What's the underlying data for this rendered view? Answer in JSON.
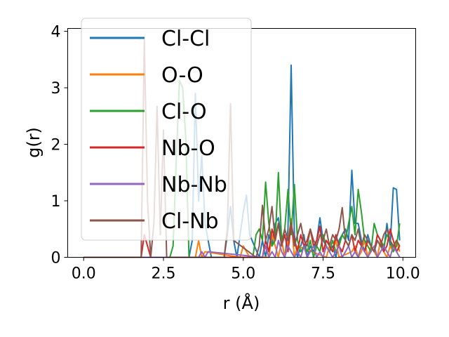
{
  "chart_data": {
    "type": "line",
    "xlabel": "r (Å)",
    "ylabel": "g(r)",
    "xlim": [
      -0.5,
      10.4
    ],
    "ylim": [
      0,
      4.05
    ],
    "xticks": [
      "0.0",
      "2.5",
      "5.0",
      "7.5",
      "10.0"
    ],
    "yticks": [
      "0",
      "1",
      "2",
      "3",
      "4"
    ],
    "grid": false,
    "legend_position": "top-left",
    "series": [
      {
        "name": "Cl-Cl",
        "color": "#1f77b4",
        "x": [
          0,
          3.3,
          3.4,
          3.5,
          3.6,
          3.7,
          3.8,
          3.9,
          4.0,
          4.4,
          4.5,
          4.6,
          4.7,
          4.8,
          4.9,
          5.0,
          5.1,
          5.2,
          5.5,
          5.6,
          5.7,
          5.8,
          5.9,
          6.0,
          6.1,
          6.2,
          6.3,
          6.4,
          6.5,
          6.6,
          6.7,
          6.8,
          6.9,
          7.0,
          7.1,
          7.2,
          7.3,
          7.4,
          7.5,
          7.6,
          7.7,
          7.8,
          7.9,
          8.0,
          8.1,
          8.2,
          8.3,
          8.4,
          8.5,
          8.6,
          8.7,
          8.8,
          8.9,
          9.0,
          9.1,
          9.2,
          9.3,
          9.4,
          9.5,
          9.6,
          9.7,
          9.8,
          9.9
        ],
        "y": [
          0,
          0,
          0.3,
          2.9,
          1.0,
          1.8,
          0.6,
          0.3,
          0,
          0,
          0.4,
          0.9,
          0.3,
          0,
          0.4,
          0.8,
          1.1,
          0.4,
          0,
          0.3,
          0,
          0.4,
          0.2,
          0.6,
          0.7,
          0.3,
          0,
          0.5,
          3.4,
          0.4,
          0,
          0.2,
          0.4,
          0,
          0.2,
          0.1,
          0.3,
          0.7,
          0.3,
          0.2,
          0.1,
          0.2,
          0,
          0.3,
          0.4,
          0.5,
          0.3,
          1.54,
          0.6,
          0.6,
          0.3,
          0.1,
          0.4,
          0.2,
          0.1,
          0.3,
          0.2,
          0.1,
          0.6,
          0.2,
          1.23,
          1.2,
          0.3
        ]
      },
      {
        "name": "O-O",
        "color": "#ff7f0e",
        "x": [
          0,
          3.5,
          3.6,
          3.7,
          3.8,
          4.9,
          5.0,
          5.1,
          5.2,
          5.8,
          5.9,
          6.0,
          6.1,
          6.2,
          6.3,
          6.4,
          6.5,
          6.6,
          6.7,
          7.6,
          7.7,
          7.8,
          7.9,
          8.0,
          8.4,
          8.5,
          8.6,
          8.7,
          8.8,
          8.9,
          9.0,
          9.1,
          9.2,
          9.3,
          9.4,
          9.5,
          9.6,
          9.7,
          9.8,
          9.9
        ],
        "y": [
          0,
          0,
          0.3,
          0,
          0.1,
          0,
          0.2,
          0.1,
          0,
          0,
          0.4,
          0.2,
          0,
          0.3,
          0,
          0.3,
          0.68,
          0,
          0.2,
          0,
          0.2,
          0.1,
          0.3,
          0,
          0.1,
          0.2,
          0,
          0.1,
          0.3,
          0,
          0.2,
          0.1,
          0,
          0.3,
          0.1,
          0,
          0.2,
          0.1,
          0.3,
          0.1
        ]
      },
      {
        "name": "Cl-O",
        "color": "#2ca02c",
        "x": [
          0,
          2.7,
          2.8,
          2.9,
          3.0,
          3.1,
          3.2,
          3.3,
          5.3,
          5.4,
          5.5,
          5.6,
          5.7,
          5.8,
          5.9,
          6.0,
          6.1,
          6.2,
          6.3,
          6.4,
          6.5,
          6.6,
          6.7,
          6.8,
          6.9,
          7.0,
          7.1,
          7.2,
          7.3,
          7.4,
          7.5,
          7.6,
          7.7,
          7.8,
          7.9,
          8.0,
          8.1,
          8.2,
          8.3,
          8.4,
          8.5,
          8.6,
          8.7,
          8.8,
          8.9,
          9.0,
          9.1,
          9.2,
          9.3,
          9.4,
          9.5,
          9.6,
          9.7,
          9.8,
          9.9
        ],
        "y": [
          0,
          0,
          0.2,
          1.7,
          3.13,
          3.0,
          2.1,
          0,
          0,
          0.4,
          0.5,
          0.3,
          1.33,
          0.6,
          0.2,
          0.3,
          1.5,
          0.3,
          0.5,
          1.2,
          0.4,
          1.29,
          0.3,
          0.1,
          0.2,
          0.1,
          0.3,
          0,
          0.2,
          0.1,
          0.4,
          0.2,
          0.1,
          0.3,
          0.1,
          0.2,
          0.4,
          0.3,
          0.6,
          0.9,
          0.4,
          1.2,
          0.8,
          0.3,
          0.2,
          0.1,
          0.6,
          0.4,
          0.3,
          0.2,
          0.4,
          0.3,
          0.1,
          0.2,
          0.6
        ]
      },
      {
        "name": "Nb-O",
        "color": "#d62728",
        "x": [
          0,
          1.8,
          1.9,
          2.0,
          2.1,
          5.6,
          5.7,
          5.8,
          5.9,
          6.0,
          6.1,
          6.2,
          6.3,
          6.4,
          6.5,
          6.6,
          6.7,
          6.8,
          6.9,
          7.0,
          7.1,
          7.2,
          7.3,
          7.4,
          7.5,
          7.6,
          7.7,
          7.8,
          7.9,
          8.0,
          8.1,
          8.2,
          8.3,
          8.4,
          8.5,
          8.6,
          8.7,
          8.8,
          8.9,
          9.0,
          9.1,
          9.2,
          9.3,
          9.4,
          9.5,
          9.6,
          9.7,
          9.8,
          9.9
        ],
        "y": [
          0,
          0,
          0.4,
          0.2,
          0,
          0,
          0.3,
          0.1,
          0.5,
          0.3,
          0.6,
          0.2,
          0.4,
          0.1,
          0.6,
          0.3,
          0.1,
          0.4,
          0.2,
          0.3,
          0.5,
          0.2,
          0.3,
          0.55,
          0.1,
          0.3,
          0.2,
          0.1,
          0.4,
          0.2,
          0.1,
          0.3,
          0.2,
          0.4,
          0.1,
          0.3,
          0.2,
          0.1,
          0.3,
          0.2,
          0.1,
          0.4,
          0.3,
          0.1,
          0.2,
          0.5,
          0.3,
          0.1,
          0.2
        ]
      },
      {
        "name": "Nb-Nb",
        "color": "#9467bd",
        "x": [
          0,
          3.6,
          3.7,
          3.8,
          3.9,
          5.6,
          5.7,
          5.8,
          5.9,
          6.0,
          6.1,
          6.2,
          6.3,
          6.4,
          6.5,
          6.6,
          6.7,
          6.8,
          6.9,
          7.0,
          7.1,
          7.2,
          7.3,
          7.4,
          7.5,
          7.6,
          7.7,
          7.8,
          7.9,
          8.0,
          8.1,
          8.2,
          8.3,
          8.4,
          8.5,
          8.6,
          8.7,
          8.8,
          8.9,
          9.0,
          9.1,
          9.2,
          9.3,
          9.4,
          9.5,
          9.6,
          9.7,
          9.8,
          9.9
        ],
        "y": [
          0,
          0,
          0.1,
          0,
          0.1,
          0,
          0.2,
          0,
          0.1,
          0,
          0.3,
          0.1,
          0,
          0.2,
          0.1,
          0,
          0.1,
          0,
          0.2,
          0,
          0.1,
          0.2,
          0,
          0.1,
          0,
          0.2,
          0.1,
          0,
          0.1,
          0.2,
          0,
          0.1,
          0.2,
          0,
          0.1,
          0,
          0.2,
          0.1,
          0,
          0.1,
          0.2,
          0,
          0.1,
          0.2,
          0.1,
          0,
          0.2,
          0.1,
          0
        ]
      },
      {
        "name": "Cl-Nb",
        "color": "#8c564b",
        "x": [
          0,
          1.8,
          1.9,
          2.0,
          2.1,
          2.2,
          2.3,
          2.4,
          2.5,
          2.6,
          4.4,
          4.5,
          4.6,
          4.7,
          5.4,
          5.5,
          5.6,
          5.7,
          5.8,
          5.9,
          6.0,
          6.1,
          6.2,
          6.3,
          6.4,
          6.5,
          6.6,
          6.7,
          6.8,
          6.9,
          7.0,
          7.1,
          7.2,
          7.3,
          7.4,
          7.5,
          7.6,
          7.7,
          7.8,
          7.9,
          8.0,
          8.1,
          8.2,
          8.3,
          8.4,
          8.5,
          8.6,
          8.7,
          8.8,
          8.9,
          9.0,
          9.1,
          9.2,
          9.3,
          9.4,
          9.5,
          9.6,
          9.7,
          9.8,
          9.9
        ],
        "y": [
          0,
          0,
          3.85,
          1.0,
          0,
          0.6,
          2.67,
          0.4,
          2.25,
          0,
          0,
          0.5,
          2.72,
          0.3,
          0,
          0.2,
          0.92,
          0.3,
          0.5,
          0.9,
          0.3,
          0.6,
          0.2,
          0.5,
          0.3,
          0.6,
          0.2,
          0.4,
          0.6,
          0.3,
          0.2,
          0.5,
          0.3,
          0.2,
          0.4,
          0.3,
          0.5,
          0.2,
          0.4,
          0.3,
          0.5,
          0.88,
          0.3,
          0.2,
          0.4,
          0.3,
          0.5,
          0.2,
          0.4,
          0.3,
          0.2,
          0.1,
          0.3,
          0.2,
          0.4,
          0.5,
          0.3,
          0.2,
          0.3,
          0.2
        ]
      }
    ]
  }
}
